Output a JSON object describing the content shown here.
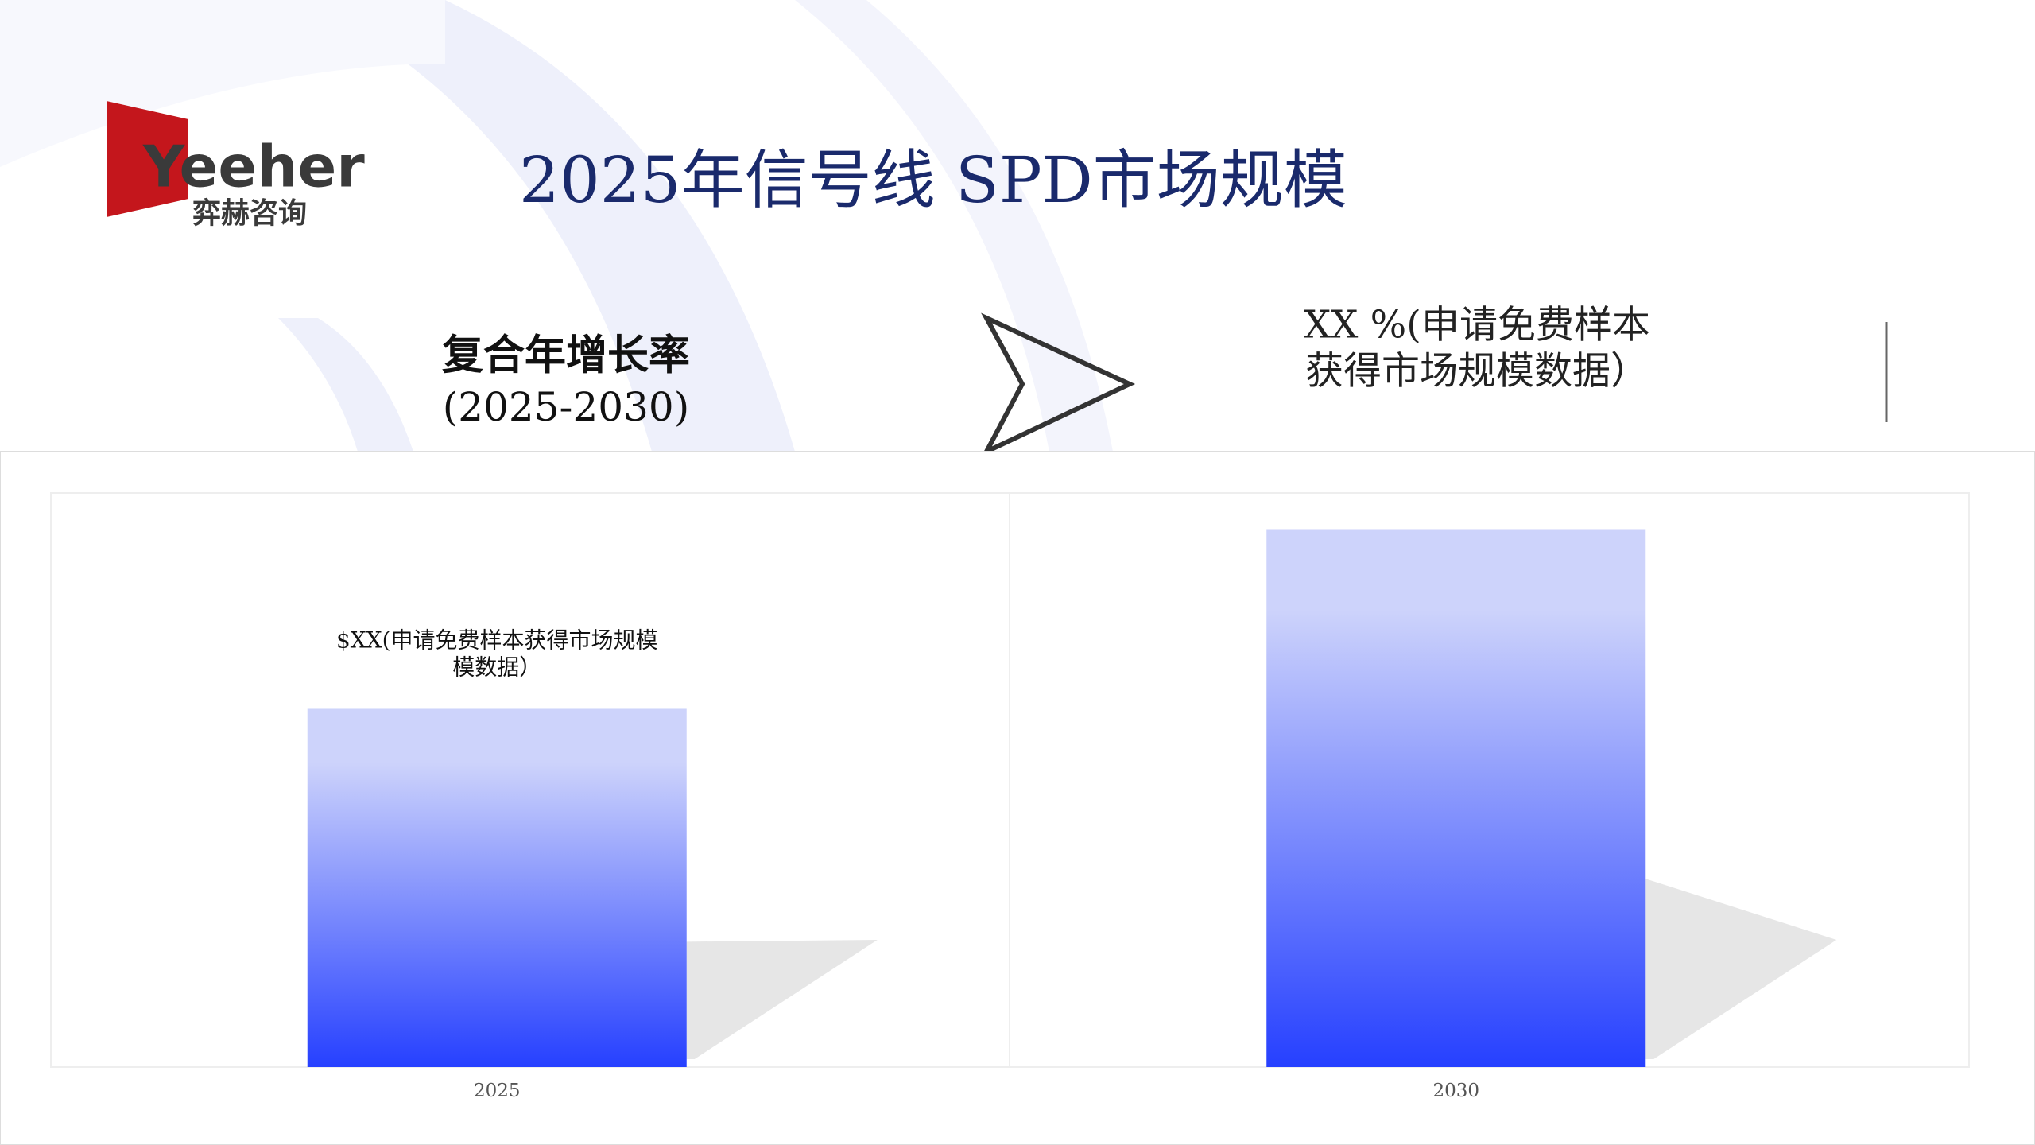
{
  "header": {
    "logo_text": "Yeeher",
    "logo_subtext": "弈赫咨询"
  },
  "cagr": {
    "label": "复合年增长率",
    "period": "(2025-2030)",
    "value_lines": [
      "XX %(申请免费样本",
      "获得市场规模数据）"
    ]
  },
  "chart_data": {
    "type": "bar",
    "title": "2025年信号线 SPD市场规模",
    "categories": [
      "2025",
      "2030"
    ],
    "values": [
      62.4,
      93.7
    ],
    "ylim": [
      0,
      100
    ],
    "grid": false,
    "color": {
      "top": "#cdd3fb",
      "bottom": "#2640ff"
    },
    "annotation": [
      "$XX(申请免费样本获得市场规模",
      "模数据）"
    ]
  }
}
